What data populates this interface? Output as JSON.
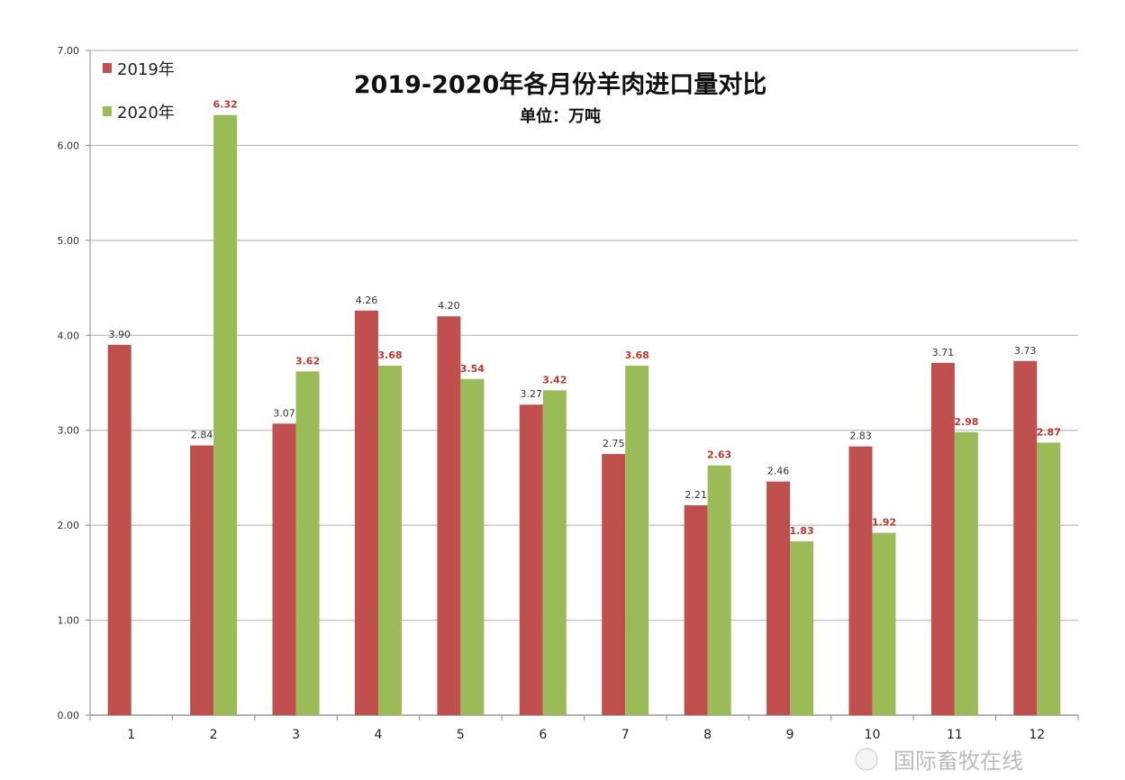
{
  "chart_data": {
    "type": "bar",
    "title": "2019-2020年各月份羊肉进口量对比",
    "subtitle": "单位：万吨",
    "categories": [
      "1",
      "2",
      "3",
      "4",
      "5",
      "6",
      "7",
      "8",
      "9",
      "10",
      "11",
      "12"
    ],
    "series": [
      {
        "name": "2019年",
        "color": "#c0504d",
        "values": [
          3.9,
          2.84,
          3.07,
          4.26,
          4.2,
          3.27,
          2.75,
          2.21,
          2.46,
          2.83,
          3.71,
          3.73
        ]
      },
      {
        "name": "2020年",
        "color": "#9bbb59",
        "values": [
          null,
          6.32,
          3.62,
          3.68,
          3.54,
          3.42,
          3.68,
          2.63,
          1.83,
          1.92,
          2.98,
          2.87
        ]
      }
    ],
    "yticks": [
      "0.00",
      "1.00",
      "2.00",
      "3.00",
      "4.00",
      "5.00",
      "6.00",
      "7.00"
    ],
    "ylim": [
      0,
      7
    ],
    "grid": true,
    "legend": "top-left",
    "xlabel": "",
    "ylabel": ""
  },
  "watermark": "国际畜牧在线"
}
